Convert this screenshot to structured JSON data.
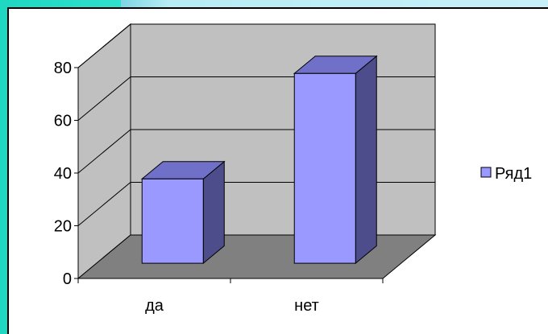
{
  "chart_data": {
    "type": "bar",
    "categories": [
      "да",
      "нет"
    ],
    "series": [
      {
        "name": "Ряд1",
        "values": [
          32,
          72
        ]
      }
    ],
    "ylim": [
      0,
      80
    ],
    "yticks": [
      "0",
      "20",
      "40",
      "60",
      "80"
    ],
    "grid": true,
    "legend": "right",
    "colors": {
      "bar_front": "#9999ff",
      "bar_top": "#7070c8",
      "bar_side": "#4d4d8c",
      "back_wall": "#c0c0c0",
      "side_wall": "#c0c0c0",
      "floor": "#808080"
    }
  }
}
